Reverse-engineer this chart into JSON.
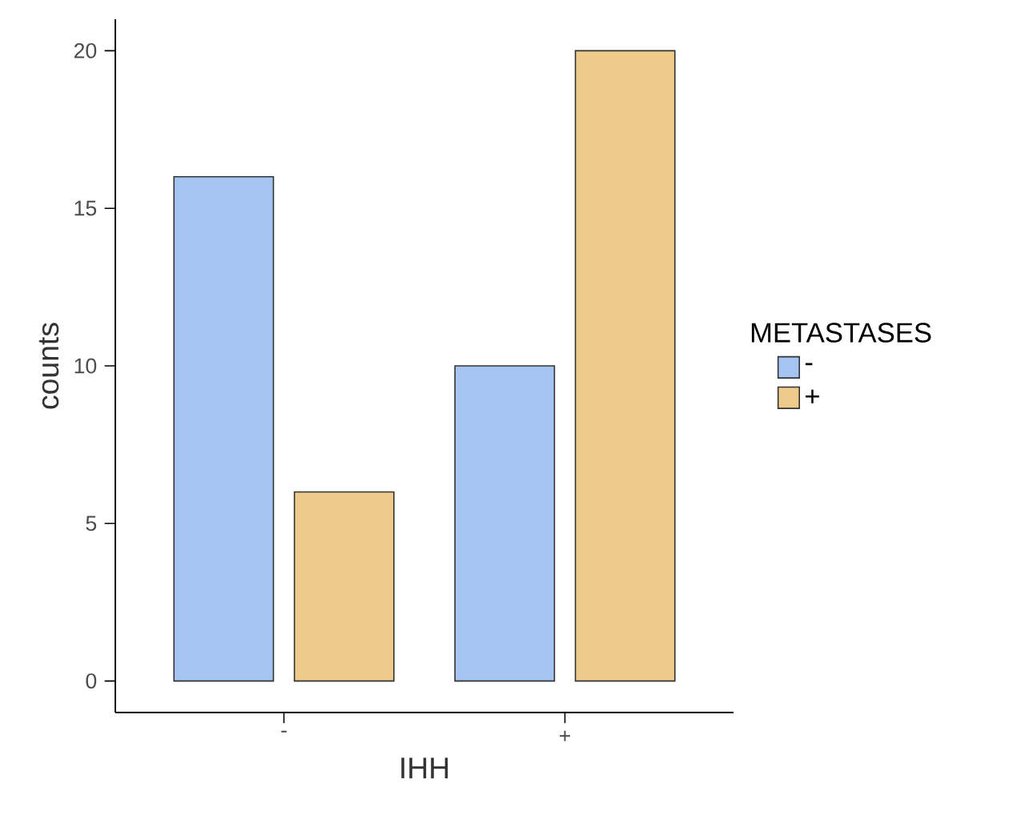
{
  "chart_data": {
    "type": "bar",
    "xlabel": "IHH",
    "ylabel": "counts",
    "legend_title": "METASTASES",
    "legend": "right",
    "categories": [
      "-",
      "+"
    ],
    "series": [
      {
        "name": "-",
        "color": "#a6c4f2",
        "values": [
          16,
          10
        ]
      },
      {
        "name": "+",
        "color": "#eecb8a",
        "values": [
          6,
          20
        ]
      }
    ],
    "ylim": [
      -1,
      21
    ],
    "yticks": [
      0,
      5,
      10,
      15,
      20
    ]
  }
}
